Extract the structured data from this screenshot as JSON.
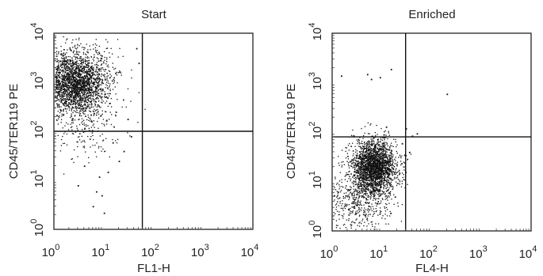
{
  "chart_data": [
    {
      "type": "scatter",
      "title": "Start",
      "xlabel": "FL1-H",
      "ylabel": "CD45/TER119 PE",
      "xscale": "log",
      "yscale": "log",
      "xlim": [
        1,
        10000
      ],
      "ylim": [
        1,
        10000
      ],
      "x_ticks": [
        {
          "base": "10",
          "exp": "0"
        },
        {
          "base": "10",
          "exp": "1"
        },
        {
          "base": "10",
          "exp": "2"
        },
        {
          "base": "10",
          "exp": "3"
        },
        {
          "base": "10",
          "exp": "4"
        }
      ],
      "y_ticks": [
        {
          "base": "10",
          "exp": "0"
        },
        {
          "base": "10",
          "exp": "1"
        },
        {
          "base": "10",
          "exp": "2"
        },
        {
          "base": "10",
          "exp": "3"
        },
        {
          "base": "10",
          "exp": "4"
        }
      ],
      "quadrant_gate": {
        "x": 60,
        "y": 100
      },
      "grid": false,
      "legend": "none",
      "populations": [
        {
          "x_center": 2.5,
          "y_center": 1000,
          "x_spread_decades": 0.35,
          "y_spread_decades": 0.33,
          "approx_events": 2600
        },
        {
          "x_center": 5,
          "y_center": 130,
          "x_spread_decades": 0.4,
          "y_spread_decades": 0.35,
          "approx_events": 160
        }
      ],
      "outliers": [
        [
          7,
          6
        ],
        [
          9,
          5
        ],
        [
          4,
          20
        ],
        [
          12,
          15
        ],
        [
          25,
          40
        ],
        [
          30,
          180
        ],
        [
          45,
          5000
        ],
        [
          50,
          2500
        ],
        [
          3,
          8
        ],
        [
          20,
          25
        ],
        [
          15,
          60
        ],
        [
          35,
          80
        ],
        [
          10,
          2.2
        ],
        [
          6,
          3
        ],
        [
          8,
          12
        ]
      ]
    },
    {
      "type": "scatter",
      "title": "Enriched",
      "xlabel": "FL4-H",
      "ylabel": "CD45/TER119 PE",
      "xscale": "log",
      "yscale": "log",
      "xlim": [
        1,
        10000
      ],
      "ylim": [
        1,
        10000
      ],
      "x_ticks": [
        {
          "base": "10",
          "exp": "0"
        },
        {
          "base": "10",
          "exp": "1"
        },
        {
          "base": "10",
          "exp": "2"
        },
        {
          "base": "10",
          "exp": "3"
        },
        {
          "base": "10",
          "exp": "4"
        }
      ],
      "y_ticks": [
        {
          "base": "10",
          "exp": "0"
        },
        {
          "base": "10",
          "exp": "1"
        },
        {
          "base": "10",
          "exp": "2"
        },
        {
          "base": "10",
          "exp": "3"
        },
        {
          "base": "10",
          "exp": "4"
        }
      ],
      "quadrant_gate": {
        "x": 30,
        "y": 80
      },
      "grid": false,
      "legend": "none",
      "populations": [
        {
          "x_center": 7,
          "y_center": 20,
          "x_spread_decades": 0.22,
          "y_spread_decades": 0.28,
          "approx_events": 2300
        },
        {
          "x_center": 3,
          "y_center": 4,
          "x_spread_decades": 0.35,
          "y_spread_decades": 0.35,
          "approx_events": 500
        }
      ],
      "outliers": [
        [
          1.5,
          1400
        ],
        [
          5,
          1500
        ],
        [
          6,
          1200
        ],
        [
          9,
          1300
        ],
        [
          15,
          1900
        ],
        [
          200,
          600
        ],
        [
          30,
          120
        ],
        [
          35,
          40
        ],
        [
          50,
          95
        ],
        [
          40,
          85
        ],
        [
          25,
          60
        ],
        [
          12,
          130
        ],
        [
          28,
          35
        ],
        [
          18,
          5
        ]
      ]
    }
  ]
}
